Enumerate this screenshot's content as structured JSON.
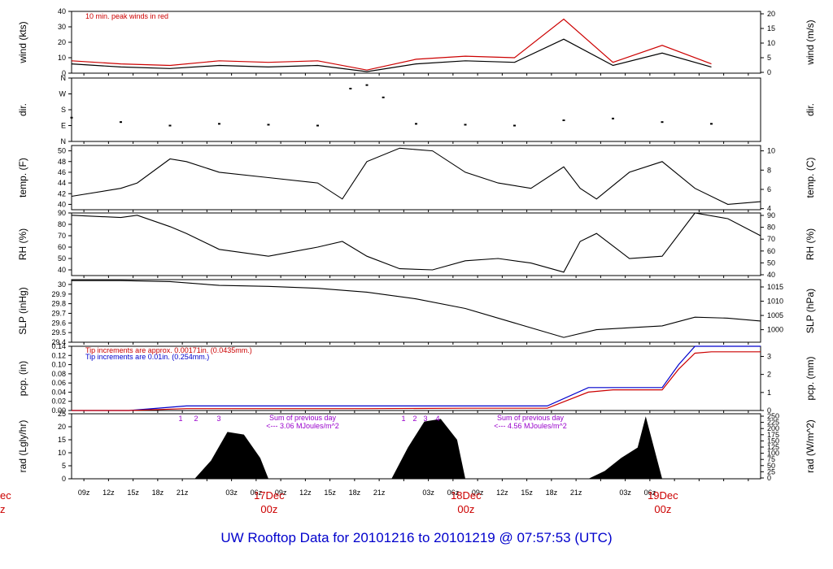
{
  "footer": {
    "title": "UW Rooftop Data for 20101216  to  20101219 @ 07:57:53  (UTC)",
    "color": "#0000cc"
  },
  "chart_data": [
    {
      "type": "line",
      "id": "wind",
      "ylabel": "wind (kts)",
      "ylabel_right": "wind (m/s)",
      "ylim": [
        0,
        40
      ],
      "yticks": [
        0,
        10,
        20,
        30,
        40
      ],
      "yticks_right": [
        "0",
        "5",
        "10",
        "15",
        "20"
      ],
      "annotation": "10 min. peak winds in red",
      "x": [
        0,
        6,
        12,
        18,
        24,
        30,
        36,
        42,
        48,
        54,
        60,
        66,
        72,
        78
      ],
      "series": [
        {
          "color": "#000000",
          "values": [
            6,
            4,
            3,
            5,
            4,
            5,
            1,
            6,
            8,
            7,
            22,
            5,
            13,
            4
          ]
        },
        {
          "color": "#cc0000",
          "values": [
            8,
            6,
            5,
            8,
            7,
            8,
            2,
            9,
            11,
            10,
            35,
            7,
            18,
            6
          ]
        }
      ]
    },
    {
      "type": "scatter",
      "id": "dir",
      "ylabel": "dir.",
      "ylabel_right": "dir.",
      "ylim": [
        0,
        360
      ],
      "yticks": [
        0,
        90,
        180,
        270,
        360
      ],
      "ytick_labels": [
        "N",
        "E",
        "S",
        "W",
        "N"
      ],
      "x": [
        0,
        6,
        12,
        18,
        24,
        30,
        34,
        36,
        38,
        42,
        48,
        54,
        60,
        66,
        72,
        78
      ],
      "values": [
        135,
        110,
        90,
        100,
        95,
        90,
        300,
        320,
        250,
        100,
        95,
        90,
        120,
        130,
        110,
        100
      ]
    },
    {
      "type": "line",
      "id": "temp",
      "ylabel": "temp. (F)",
      "ylabel_right": "temp. (C)",
      "ylim": [
        39,
        51
      ],
      "yticks": [
        40,
        42,
        44,
        46,
        48,
        50
      ],
      "yticks_right": [
        "4",
        "6",
        "8",
        "10"
      ],
      "x": [
        0,
        6,
        8,
        12,
        14,
        18,
        24,
        30,
        33,
        36,
        40,
        44,
        48,
        52,
        56,
        60,
        62,
        64,
        68,
        72,
        76,
        80,
        84
      ],
      "values": [
        41.5,
        43,
        44,
        48.5,
        48,
        46,
        45,
        44,
        41,
        48,
        50.5,
        50,
        46,
        44,
        43,
        47,
        43,
        41,
        46,
        48,
        43,
        40,
        40.5
      ]
    },
    {
      "type": "line",
      "id": "rh",
      "ylabel": "RH (%)",
      "ylabel_right": "RH (%)",
      "ylim": [
        35,
        90
      ],
      "yticks": [
        40,
        50,
        60,
        70,
        80,
        90
      ],
      "yticks_right": [
        "40",
        "50",
        "60",
        "70",
        "80",
        "90"
      ],
      "x": [
        0,
        6,
        8,
        12,
        14,
        18,
        24,
        30,
        33,
        36,
        40,
        44,
        48,
        52,
        56,
        60,
        62,
        64,
        68,
        72,
        76,
        80,
        84
      ],
      "values": [
        88,
        86,
        88,
        78,
        72,
        58,
        52,
        60,
        65,
        52,
        41,
        40,
        48,
        50,
        46,
        38,
        65,
        72,
        50,
        52,
        90,
        85,
        70
      ]
    },
    {
      "type": "line",
      "id": "slp",
      "ylabel": "SLP (inHg)",
      "ylabel_right": "SLP (hPa)",
      "ylim": [
        29.4,
        30.05
      ],
      "yticks": [
        29.4,
        29.5,
        29.6,
        29.7,
        29.8,
        29.9,
        30.0
      ],
      "yticks_right": [
        "1000",
        "1005",
        "1010",
        "1015"
      ],
      "x": [
        0,
        6,
        12,
        18,
        24,
        30,
        36,
        42,
        48,
        54,
        60,
        64,
        68,
        72,
        76,
        80,
        84
      ],
      "values": [
        30.04,
        30.04,
        30.03,
        29.99,
        29.98,
        29.96,
        29.92,
        29.85,
        29.75,
        29.6,
        29.45,
        29.53,
        29.55,
        29.57,
        29.66,
        29.65,
        29.62
      ]
    },
    {
      "type": "line",
      "id": "pcp",
      "ylabel": "pcp. (in)",
      "ylabel_right": "pcp. (mm)",
      "ylim": [
        0,
        0.14
      ],
      "yticks": [
        0,
        0.02,
        0.04,
        0.06,
        0.08,
        0.1,
        0.12,
        0.14
      ],
      "ytick_labels": [
        "0.00",
        "0.02",
        "0.04",
        "0.06",
        "0.08",
        "0.10",
        "0.12",
        "0.14"
      ],
      "yticks_right": [
        "0",
        "1",
        "2",
        "3"
      ],
      "annotations": [
        {
          "text": "Tip increments are approx. 0.00171in. (0.0435mm.)",
          "color": "#cc0000"
        },
        {
          "text": "Tip increments are 0.01in. (0.254mm.)",
          "color": "#0000cc"
        }
      ],
      "x": [
        0,
        7,
        14,
        20,
        24,
        36,
        48,
        58,
        63,
        66,
        72,
        74,
        76,
        78,
        84
      ],
      "series": [
        {
          "color": "#0000cc",
          "values": [
            0,
            0,
            0.01,
            0.01,
            0.01,
            0.01,
            0.01,
            0.01,
            0.05,
            0.05,
            0.05,
            0.1,
            0.14,
            0.14,
            0.14
          ]
        },
        {
          "color": "#cc0000",
          "values": [
            0,
            0,
            0.004,
            0.004,
            0.004,
            0.004,
            0.005,
            0.005,
            0.04,
            0.045,
            0.045,
            0.09,
            0.125,
            0.128,
            0.128
          ]
        }
      ]
    },
    {
      "type": "area",
      "id": "rad",
      "ylabel": "rad (Lgly/hr)",
      "ylabel_right": "rad (W/m^2)",
      "ylim": [
        0,
        25
      ],
      "yticks": [
        0,
        5,
        10,
        15,
        20,
        25
      ],
      "yticks_right": [
        "0",
        "25",
        "50",
        "75",
        "100",
        "125",
        "150",
        "175",
        "200",
        "225",
        "250"
      ],
      "annotations": [
        {
          "text": "Sum of previous day",
          "color": "#9900cc"
        },
        {
          "text": "<--- 3.06 MJoules/m^2",
          "color": "#9900cc"
        },
        {
          "text": "Sum of previous day",
          "color": "#9900cc"
        },
        {
          "text": "<--- 4.56 MJoules/m^2",
          "color": "#9900cc"
        }
      ],
      "hour_markers": [
        "1",
        "2",
        "3",
        "1",
        "2",
        "3",
        "4"
      ],
      "x": [
        15,
        17,
        19,
        21,
        23,
        24,
        39,
        41,
        43,
        45,
        47,
        48,
        63,
        65,
        67,
        69,
        70,
        72
      ],
      "values": [
        0,
        7,
        18,
        17,
        8,
        0,
        0,
        12,
        22,
        23,
        15,
        0,
        0,
        3,
        8,
        12,
        24,
        0
      ]
    }
  ],
  "x_axis": {
    "tick_labels": [
      "09z",
      "12z",
      "15z",
      "18z",
      "21z",
      "",
      "03z",
      "06z",
      "09z",
      "12z",
      "15z",
      "18z",
      "21z",
      "",
      "03z",
      "06z",
      "09z",
      "12z",
      "15z",
      "18z",
      "21z",
      "",
      "03z",
      "06z"
    ],
    "date_labels": [
      {
        "day": "17Dec",
        "hour": "00z"
      },
      {
        "day": "18Dec",
        "hour": "00z"
      },
      {
        "day": "19Dec",
        "hour": "00z"
      }
    ],
    "left_clip_day": "ec",
    "left_clip_hour": "z",
    "date_color": "#cc0000"
  }
}
